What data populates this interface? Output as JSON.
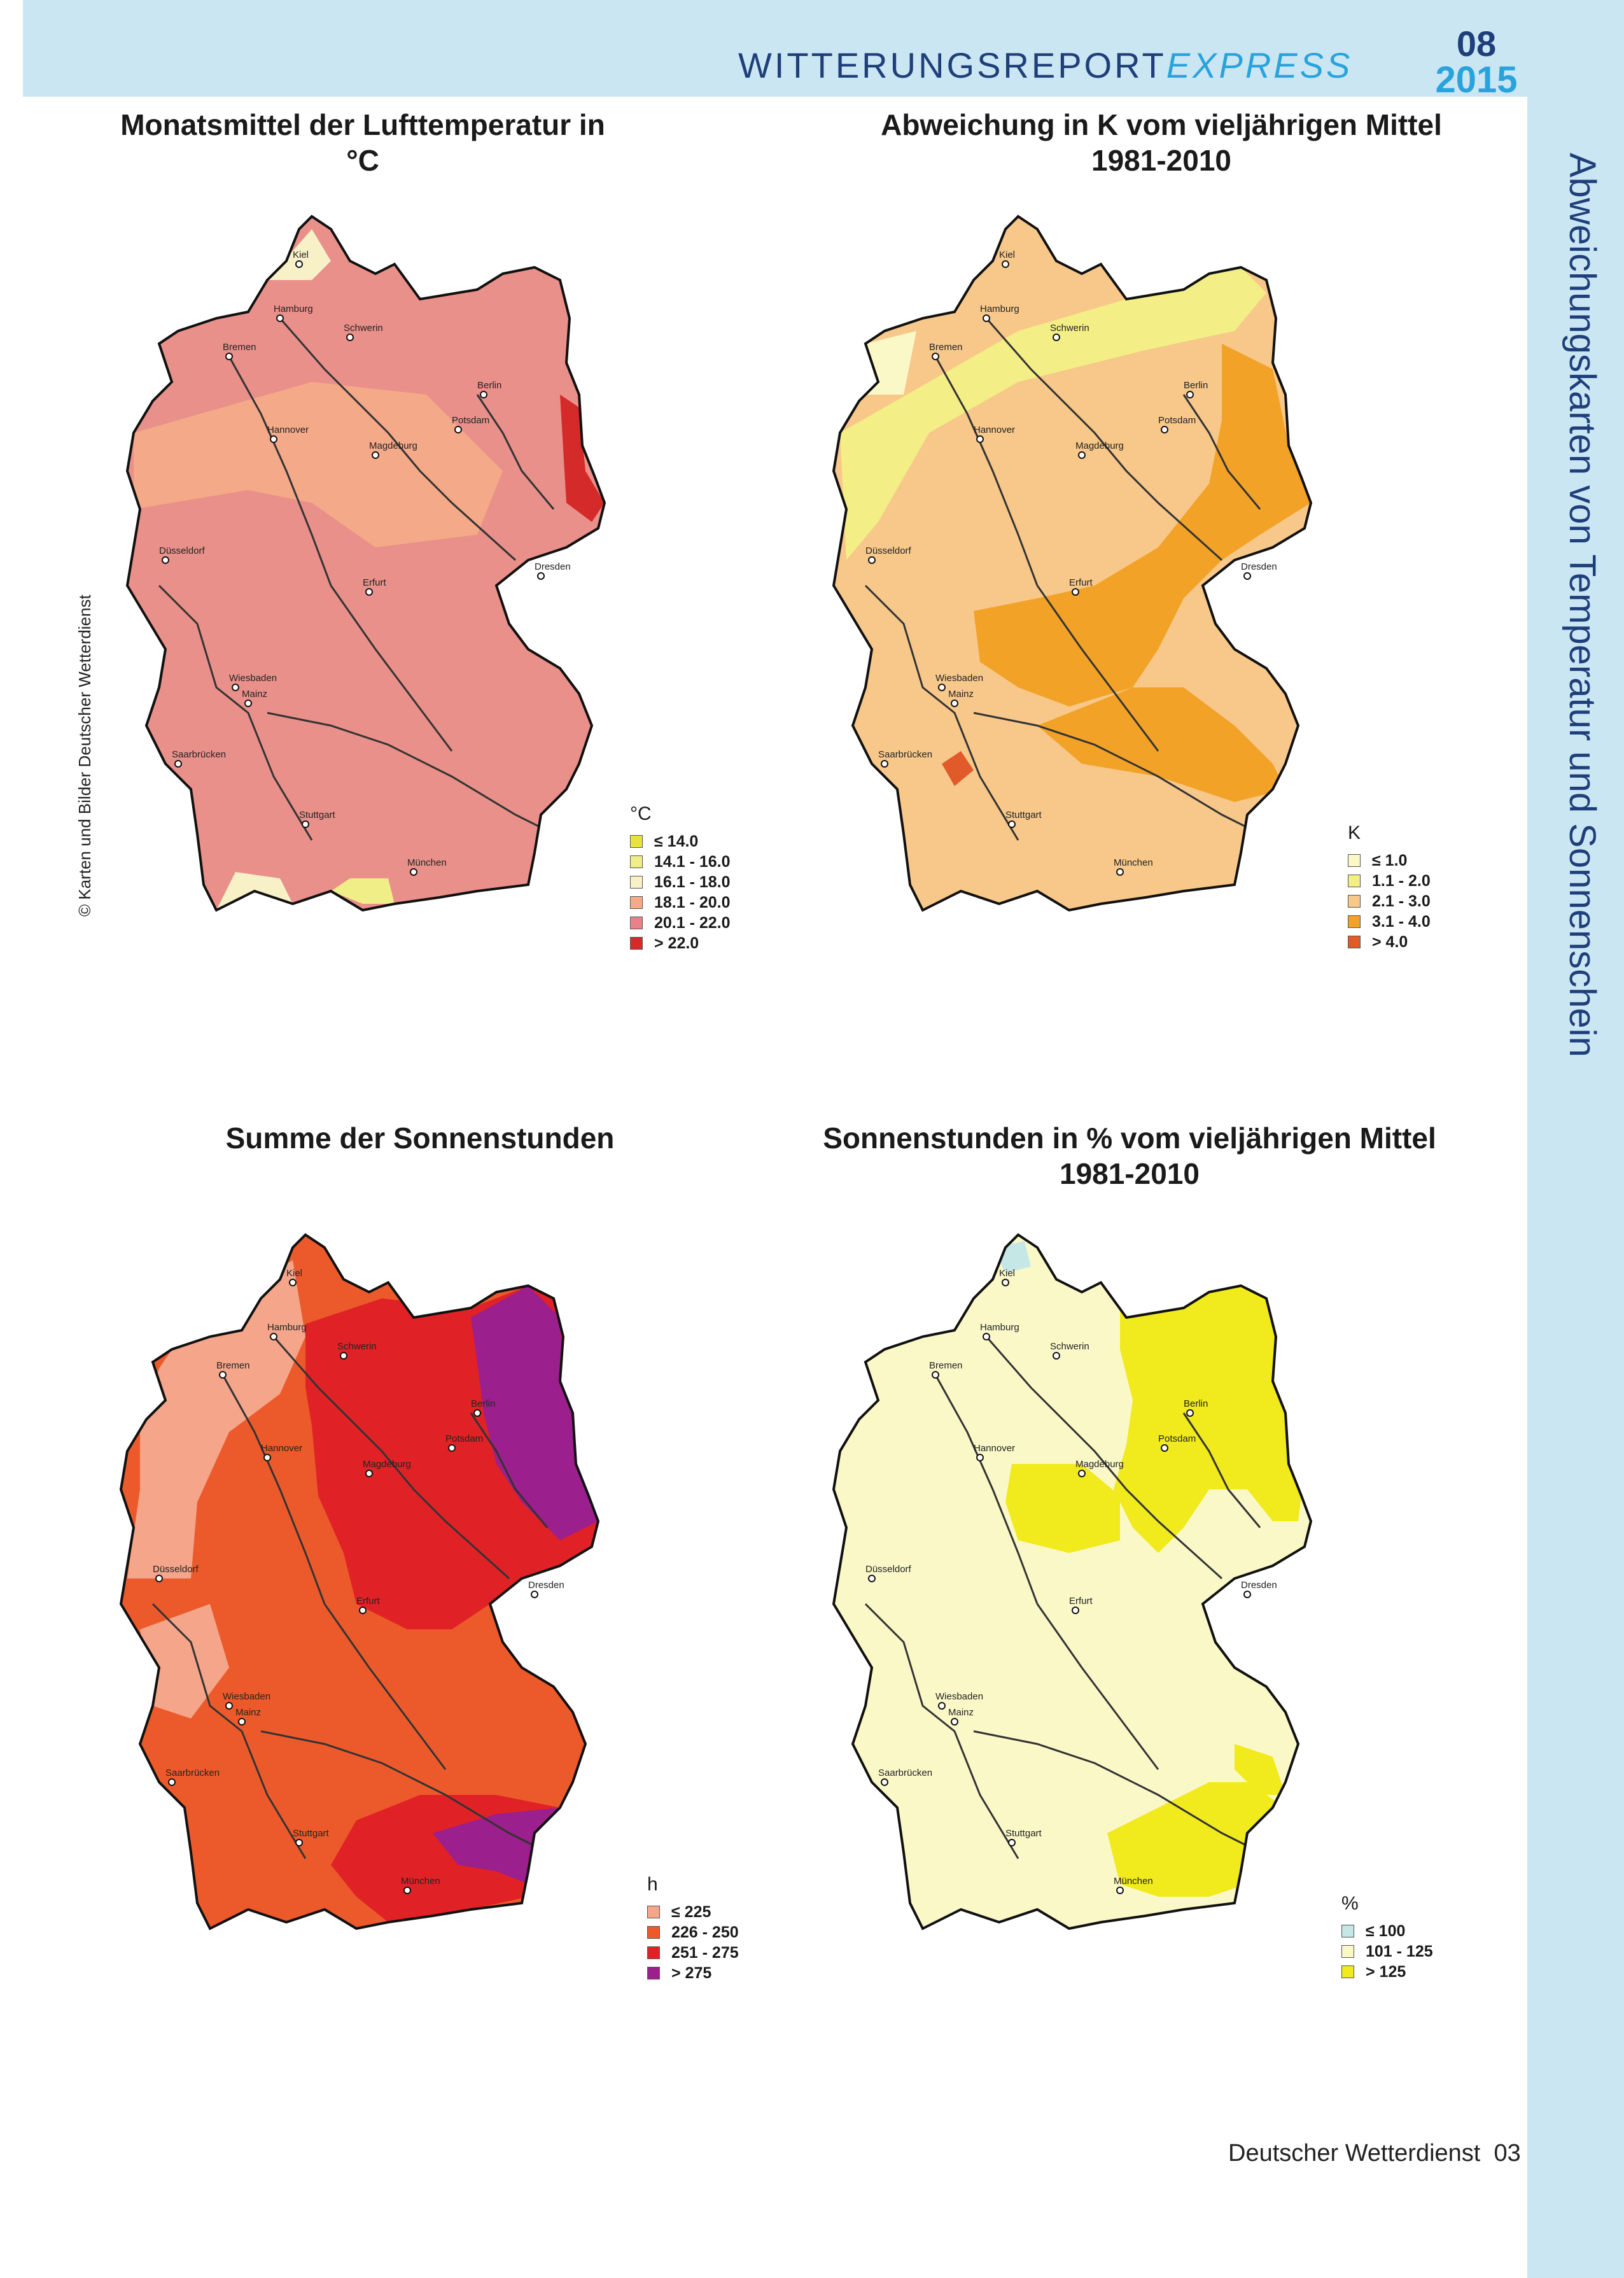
{
  "header": {
    "title_main": "WITTERUNGSREPORT",
    "title_express": "EXPRESS",
    "issue_month": "08",
    "issue_year": "2015"
  },
  "side_title": "Abweichungskarten von Temperatur und Sonnenschein",
  "copyright": "© Karten und Bilder Deutscher Wetterdienst",
  "footer": {
    "publisher": "Deutscher Wetterdienst",
    "page": "03"
  },
  "colors": {
    "band": "#cbe6f3",
    "header_blue": "#1f3f7a",
    "accent_blue": "#2aa3dc"
  },
  "cities": [
    "Kiel",
    "Hamburg",
    "Schwerin",
    "Bremen",
    "Berlin",
    "Hannover",
    "Potsdam",
    "Magdeburg",
    "Düsseldorf",
    "Erfurt",
    "Dresden",
    "Wiesbaden",
    "Mainz",
    "Saarbrücken",
    "Stuttgart",
    "München"
  ],
  "maps": [
    {
      "title_lines": [
        "Monatsmittel der Lufttemperatur in °C"
      ],
      "base_color": "#e9908a",
      "legend": {
        "unit": "°C",
        "items": [
          {
            "label": "≤  14.0",
            "color": "#e6e33a"
          },
          {
            "label": "14.1 - 16.0",
            "color": "#f0ee86"
          },
          {
            "label": "16.1 - 18.0",
            "color": "#f8f1c8"
          },
          {
            "label": "18.1 - 20.0",
            "color": "#f4a989"
          },
          {
            "label": "20.1 - 22.0",
            "color": "#e9808a"
          },
          {
            "label": "> 22.0",
            "color": "#d42a2a"
          }
        ]
      }
    },
    {
      "title_lines": [
        "Abweichung in K vom vieljährigen Mittel",
        "1981-2010"
      ],
      "base_color": "#f7c88a",
      "legend": {
        "unit": "K",
        "items": [
          {
            "label": "≤  1.0",
            "color": "#fbf8c8"
          },
          {
            "label": "1.1 - 2.0",
            "color": "#f3ee86"
          },
          {
            "label": "2.1 - 3.0",
            "color": "#f7c88a"
          },
          {
            "label": "3.1 - 4.0",
            "color": "#f2a227"
          },
          {
            "label": "> 4.0",
            "color": "#e05a2a"
          }
        ]
      }
    },
    {
      "title_lines": [
        "Summe der Sonnenstunden"
      ],
      "base_color": "#ec5a2b",
      "legend": {
        "unit": "h",
        "items": [
          {
            "label": "≤  225",
            "color": "#f4a58a"
          },
          {
            "label": "226 - 250",
            "color": "#ec5a2b"
          },
          {
            "label": "251 - 275",
            "color": "#e02227"
          },
          {
            "label": "> 275",
            "color": "#9b1f8c"
          }
        ]
      }
    },
    {
      "title_lines": [
        "Sonnenstunden in % vom vieljährigen Mittel",
        "1981-2010"
      ],
      "base_color": "#fbf8c8",
      "legend": {
        "unit": "%",
        "items": [
          {
            "label": "≤  100",
            "color": "#c5e8e6"
          },
          {
            "label": "101 - 125",
            "color": "#fbf8c8"
          },
          {
            "label": "> 125",
            "color": "#f1ea1d"
          }
        ]
      }
    }
  ]
}
